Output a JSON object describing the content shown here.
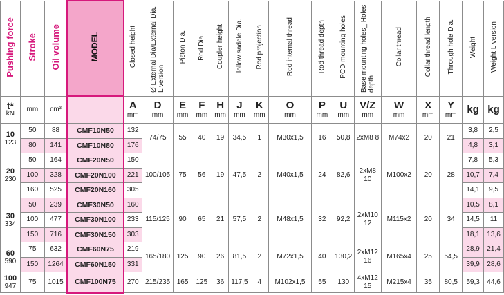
{
  "headers": {
    "pushing_force": "Pushing force",
    "stroke": "Stroke",
    "oil_volume": "Oil volume",
    "model": "MODEL",
    "cols": [
      "Closed height",
      "Ø External Dia/External Dia. L version",
      "Piston Dia.",
      "Rod Dia.",
      "Coupler height",
      "Hollow saddle Dia.",
      "Rod projection",
      "Rod internal thread",
      "Rod thread depth",
      "PCD mounting holes",
      "Base mounting holes_ Holes depth",
      "Collar thread",
      "Collar thread length",
      "Through hole Dia.",
      "Weight",
      "Weight L version"
    ]
  },
  "units": {
    "force_letter": "t*",
    "force_unit": "kN",
    "stroke_unit": "mm",
    "oil_unit": "cm³",
    "letters": [
      "A",
      "D",
      "E",
      "F",
      "H",
      "J",
      "K",
      "O",
      "P",
      "U",
      "V/Z",
      "W",
      "X",
      "Y",
      "kg",
      "kg"
    ],
    "unit_labels": [
      "mm",
      "mm",
      "mm",
      "mm",
      "mm",
      "mm",
      "mm",
      "mm",
      "mm",
      "mm",
      "mm",
      "mm",
      "mm",
      "mm",
      "",
      ""
    ]
  },
  "groups": {
    "g10": {
      "t": "10",
      "kN": "123",
      "D": "74/75",
      "E": "55",
      "F": "40",
      "H": "19",
      "J": "34,5",
      "K": "1",
      "O": "M30x1,5",
      "P": "16",
      "U": "50,8",
      "VZ": "2xM8 8",
      "W": "M74x2",
      "X": "20",
      "Y": "21"
    },
    "g20": {
      "t": "20",
      "kN": "230",
      "D": "100/105",
      "E": "75",
      "F": "56",
      "H": "19",
      "J": "47,5",
      "K": "2",
      "O": "M40x1,5",
      "P": "24",
      "U": "82,6",
      "VZ": "2xM8 10",
      "W": "M100x2",
      "X": "20",
      "Y": "28"
    },
    "g30": {
      "t": "30",
      "kN": "334",
      "D": "115/125",
      "E": "90",
      "F": "65",
      "H": "21",
      "J": "57,5",
      "K": "2",
      "O": "M48x1,5",
      "P": "32",
      "U": "92,2",
      "VZ": "2xM10 12",
      "W": "M115x2",
      "X": "20",
      "Y": "34"
    },
    "g60": {
      "t": "60",
      "kN": "590",
      "D": "165/180",
      "E": "125",
      "F": "90",
      "H": "26",
      "J": "81,5",
      "K": "2",
      "O": "M72x1,5",
      "P": "40",
      "U": "130,2",
      "VZ": "2xM12 16",
      "W": "M165x4",
      "X": "25",
      "Y": "54,5"
    },
    "g100": {
      "t": "100",
      "kN": "947",
      "D": "215/235",
      "E": "165",
      "F": "125",
      "H": "36",
      "J": "117,5",
      "K": "4",
      "O": "M102x1,5",
      "P": "55",
      "U": "130",
      "VZ": "4xM12 15",
      "W": "M215x4",
      "X": "35",
      "Y": "80,5"
    }
  },
  "rows": [
    {
      "stroke": "50",
      "oil": "88",
      "model": "CMF10N50",
      "A": "132",
      "kg": "3,8",
      "kgL": "2,5"
    },
    {
      "stroke": "80",
      "oil": "141",
      "model": "CMF10N80",
      "A": "176",
      "kg": "4,8",
      "kgL": "3,1"
    },
    {
      "stroke": "50",
      "oil": "164",
      "model": "CMF20N50",
      "A": "150",
      "kg": "7,8",
      "kgL": "5,3"
    },
    {
      "stroke": "100",
      "oil": "328",
      "model": "CMF20N100",
      "A": "221",
      "kg": "10,7",
      "kgL": "7,4"
    },
    {
      "stroke": "160",
      "oil": "525",
      "model": "CMF20N160",
      "A": "305",
      "kg": "14,1",
      "kgL": "9,5"
    },
    {
      "stroke": "50",
      "oil": "239",
      "model": "CMF30N50",
      "A": "160",
      "kg": "10,5",
      "kgL": "8,1"
    },
    {
      "stroke": "100",
      "oil": "477",
      "model": "CMF30N100",
      "A": "233",
      "kg": "14,5",
      "kgL": "11"
    },
    {
      "stroke": "150",
      "oil": "716",
      "model": "CMF30N150",
      "A": "303",
      "kg": "18,1",
      "kgL": "13,6"
    },
    {
      "stroke": "75",
      "oil": "632",
      "model": "CMF60N75",
      "A": "219",
      "kg": "28,9",
      "kgL": "21,4"
    },
    {
      "stroke": "150",
      "oil": "1264",
      "model": "CMF60N150",
      "A": "331",
      "kg": "39,9",
      "kgL": "28,6"
    },
    {
      "stroke": "75",
      "oil": "1015",
      "model": "CMF100N75",
      "A": "270",
      "kg": "59,3",
      "kgL": "44,6"
    }
  ],
  "colors": {
    "accent": "#d6197c",
    "highlight": "#fbd9e9"
  }
}
